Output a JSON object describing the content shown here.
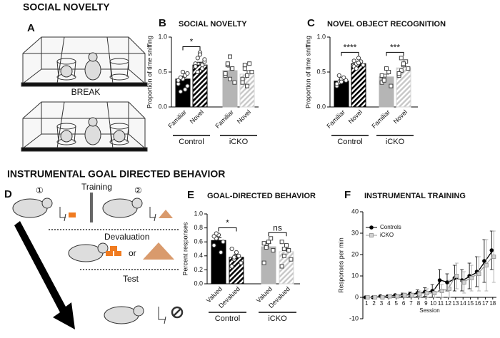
{
  "sections": [
    "SOCIAL NOVELTY",
    "INSTRUMENTAL GOAL DIRECTED BEHAVIOR"
  ],
  "schematic": {
    "panel_a": "A",
    "break": "BREAK",
    "panel_d": "D",
    "training": "Training",
    "step1": "①",
    "step2": "②",
    "devaluation": "Devaluation",
    "or": "or",
    "test": "Test"
  },
  "chart_data": [
    {
      "type": "bar",
      "panel": "B",
      "title": "SOCIAL NOVELTY",
      "y_label": "Proportion of time sniffing",
      "categories": [
        "Familiar",
        "Novel",
        "Familiar",
        "Novel"
      ],
      "groups": [
        "Control",
        "iCKO"
      ],
      "values": [
        0.4,
        0.6,
        0.52,
        0.47
      ],
      "errors": [
        0.04,
        0.04,
        0.05,
        0.05
      ],
      "colors": [
        "#000000",
        "#000000",
        "#b5b5b5",
        "#d6d6d6"
      ],
      "hatched": [
        false,
        true,
        false,
        true
      ],
      "markers": [
        "circle",
        "circle",
        "square",
        "square"
      ],
      "points": [
        [
          0.33,
          0.22,
          0.4,
          0.45,
          0.3,
          0.38,
          0.42,
          0.5,
          0.25,
          0.48
        ],
        [
          0.62,
          0.7,
          0.78,
          0.55,
          0.65,
          0.58,
          0.5,
          0.75,
          0.6,
          0.68
        ],
        [
          0.45,
          0.6,
          0.72,
          0.55,
          0.35,
          0.48,
          0.62,
          0.4
        ],
        [
          0.4,
          0.55,
          0.3,
          0.62,
          0.5,
          0.35,
          0.6,
          0.45
        ]
      ],
      "significance": [
        "*",
        null
      ],
      "ylim": [
        0,
        1
      ],
      "yticks": [
        {
          "value": 0,
          "label": "0.0"
        },
        {
          "value": 0.5,
          "label": "0.5"
        },
        {
          "value": 1,
          "label": "1.0"
        }
      ]
    },
    {
      "type": "bar",
      "panel": "C",
      "title": "NOVEL OBJECT RECOGNITION",
      "y_label": "Proportion of time sniffing",
      "categories": [
        "Familiar",
        "Novel",
        "Familiar",
        "Novel"
      ],
      "groups": [
        "Control",
        "iCKO"
      ],
      "values": [
        0.37,
        0.62,
        0.43,
        0.56
      ],
      "errors": [
        0.02,
        0.02,
        0.04,
        0.03
      ],
      "colors": [
        "#000000",
        "#000000",
        "#b5b5b5",
        "#d6d6d6"
      ],
      "hatched": [
        false,
        true,
        false,
        true
      ],
      "markers": [
        "circle",
        "circle",
        "square",
        "square"
      ],
      "points": [
        [
          0.3,
          0.35,
          0.4,
          0.42,
          0.38,
          0.33,
          0.45,
          0.36
        ],
        [
          0.58,
          0.62,
          0.7,
          0.65,
          0.6,
          0.66,
          0.55,
          0.63
        ],
        [
          0.35,
          0.4,
          0.55,
          0.5,
          0.3,
          0.45,
          0.38
        ],
        [
          0.45,
          0.52,
          0.6,
          0.65,
          0.55,
          0.48,
          0.7,
          0.62
        ]
      ],
      "significance": [
        "****",
        "***"
      ],
      "ylim": [
        0,
        1
      ],
      "yticks": [
        {
          "value": 0,
          "label": "0.0"
        },
        {
          "value": 0.5,
          "label": "0.5"
        },
        {
          "value": 1,
          "label": "1.0"
        }
      ]
    },
    {
      "type": "bar",
      "panel": "E",
      "title": "GOAL-DIRECTED BEHAVIOR",
      "y_label": "Percent responses",
      "categories": [
        "Valued",
        "Devalued",
        "Valued",
        "Devalued"
      ],
      "groups": [
        "Control",
        "iCKO"
      ],
      "values": [
        0.62,
        0.38,
        0.53,
        0.46
      ],
      "errors": [
        0.04,
        0.04,
        0.05,
        0.05
      ],
      "colors": [
        "#000000",
        "#000000",
        "#b5b5b5",
        "#d6d6d6"
      ],
      "hatched": [
        false,
        true,
        false,
        true
      ],
      "markers": [
        "circle",
        "circle",
        "square",
        "square"
      ],
      "points": [
        [
          0.55,
          0.65,
          0.7,
          0.45,
          0.6,
          0.68,
          0.72
        ],
        [
          0.25,
          0.35,
          0.45,
          0.4,
          0.3,
          0.5,
          0.38
        ],
        [
          0.3,
          0.55,
          0.6,
          0.65,
          0.48,
          0.58,
          0.52
        ],
        [
          0.25,
          0.4,
          0.55,
          0.48,
          0.35,
          0.6,
          0.5
        ]
      ],
      "significance": [
        "*",
        "ns"
      ],
      "ylim": [
        0,
        1
      ],
      "yticks": [
        {
          "value": 0,
          "label": "0.0"
        },
        {
          "value": 0.2,
          "label": "0.2"
        },
        {
          "value": 0.4,
          "label": "0.4"
        },
        {
          "value": 0.6,
          "label": "0.6"
        },
        {
          "value": 0.8,
          "label": "0.8"
        },
        {
          "value": 1,
          "label": "1.0"
        }
      ]
    },
    {
      "type": "line",
      "panel": "F",
      "title": "INSTRUMENTAL TRAINING",
      "x_label": "Session",
      "y_label": "Responses per min",
      "x": [
        1,
        2,
        3,
        4,
        5,
        6,
        7,
        8,
        9,
        10,
        11,
        12,
        13,
        14,
        15,
        16,
        17,
        18
      ],
      "series": [
        {
          "name": "Controls",
          "color": "#000000",
          "marker": "circle",
          "values": [
            0,
            0,
            0.5,
            0.5,
            1,
            1,
            1.5,
            2,
            2.5,
            3,
            8,
            7,
            9,
            8,
            10,
            12,
            17,
            22
          ],
          "errors": [
            0,
            0,
            0.5,
            0.5,
            0.5,
            1,
            1,
            1.5,
            2,
            3,
            5,
            4,
            6,
            5,
            6,
            7,
            10,
            9
          ]
        },
        {
          "name": "iCKO",
          "color": "#9e9e9e",
          "marker": "square",
          "values": [
            0,
            0,
            0,
            0.5,
            0.5,
            1,
            1,
            1.5,
            2,
            2,
            3,
            4,
            10,
            7,
            9,
            11,
            15,
            19
          ],
          "errors": [
            0,
            0,
            0.5,
            0.5,
            0.5,
            1,
            1,
            1.5,
            2,
            2,
            3,
            4,
            6,
            5,
            6,
            8,
            12,
            12
          ]
        }
      ],
      "legend": "upper left",
      "xlim": [
        0.5,
        18.5
      ],
      "xticks": [
        1,
        2,
        3,
        4,
        5,
        6,
        7,
        8,
        9,
        10,
        11,
        12,
        13,
        14,
        15,
        16,
        17,
        18
      ],
      "ylim": [
        -10,
        40
      ],
      "yticks": [
        -10,
        0,
        10,
        20,
        30,
        40
      ]
    }
  ]
}
